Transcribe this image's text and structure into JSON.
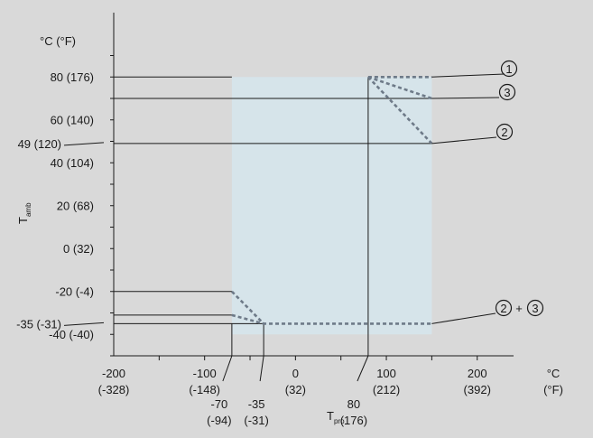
{
  "chart_data": {
    "type": "line",
    "title": "",
    "x_axis": {
      "range_c": [
        -200,
        240
      ],
      "ticks": [
        {
          "v": -200,
          "l1": "-200",
          "l2": "(-328)"
        },
        {
          "v": -100,
          "l1": "-100",
          "l2": "(-148)"
        },
        {
          "v": 0,
          "l1": "0",
          "l2": "(32)"
        },
        {
          "v": 100,
          "l1": "100",
          "l2": "(212)"
        },
        {
          "v": 200,
          "l1": "200",
          "l2": "(392)"
        }
      ],
      "unit_label": [
        "°C",
        "(°F)"
      ],
      "extra_labels": [
        {
          "v": -70,
          "l1": "-70",
          "l2": "(-94)"
        },
        {
          "v": -35,
          "l1": "-35",
          "l2": "(-31)"
        },
        {
          "v": 80,
          "l1": "80",
          "l2": "(176)"
        }
      ],
      "title_main": "T",
      "title_sub": "pro"
    },
    "y_axis": {
      "range_c": [
        -50,
        110
      ],
      "unit_label": "°C (°F)",
      "title_main": "T",
      "title_sub": "amb",
      "ticks": [
        {
          "v": 80,
          "l": "80 (176)"
        },
        {
          "v": 60,
          "l": "60 (140)"
        },
        {
          "v": 40,
          "l": "40 (104)"
        },
        {
          "v": 20,
          "l": "20 (68)"
        },
        {
          "v": 0,
          "l": "0 (32)"
        },
        {
          "v": -20,
          "l": "-20 (-4)"
        },
        {
          "v": -40,
          "l": "-40 (-40)"
        }
      ],
      "extra_labels": [
        {
          "v": 49,
          "l": "49 (120)"
        },
        {
          "v": -35,
          "l": "-35 (-31)"
        }
      ]
    },
    "operating_region": {
      "t_pro": [
        -70,
        150
      ],
      "t_amb": [
        -40,
        80
      ]
    },
    "reference_lines": [
      {
        "t_amb": 80,
        "t_pro_from": -200,
        "t_pro_to": -70
      },
      {
        "t_amb": 70,
        "t_pro_from": -200,
        "t_pro_to": 150
      },
      {
        "t_amb": 49,
        "t_pro_from": -200,
        "t_pro_to": 150
      },
      {
        "t_amb": -20,
        "t_pro_from": -200,
        "t_pro_to": -70
      },
      {
        "t_amb": -31,
        "t_pro_from": -200,
        "t_pro_to": -70
      },
      {
        "t_amb": -35,
        "t_pro_from": -200,
        "t_pro_to": -35
      },
      {
        "t_pro": -70,
        "t_amb_from": -50,
        "t_amb_to": -35
      },
      {
        "t_pro": -35,
        "t_amb_from": -50,
        "t_amb_to": -35
      },
      {
        "t_pro": 80,
        "t_amb_from": -50,
        "t_amb_to": 80
      }
    ],
    "series": [
      {
        "name": "1",
        "points": [
          [
            80,
            80
          ],
          [
            150,
            80
          ]
        ]
      },
      {
        "name": "3",
        "points": [
          [
            80,
            80
          ],
          [
            150,
            70
          ]
        ]
      },
      {
        "name": "2",
        "points": [
          [
            80,
            80
          ],
          [
            150,
            49
          ]
        ]
      },
      {
        "name": "2",
        "points": [
          [
            -70,
            -20
          ],
          [
            -35,
            -35
          ],
          [
            150,
            -35
          ]
        ]
      },
      {
        "name": "3",
        "points": [
          [
            -70,
            -31
          ],
          [
            -35,
            -35
          ]
        ]
      }
    ],
    "callouts": [
      {
        "id": "c1",
        "label": "1",
        "t_pro": 150,
        "t_amb": 80
      },
      {
        "id": "c3",
        "label": "3",
        "t_pro": 150,
        "t_amb": 70
      },
      {
        "id": "c2a",
        "label": "2",
        "t_pro": 150,
        "t_amb": 49
      },
      {
        "id": "c23",
        "label": "2 + 3",
        "t_pro": 150,
        "t_amb": -35
      }
    ],
    "colors": {
      "region": "#d6e4ea",
      "background": "#d9d9d9",
      "dashed_series": "#6e7a88",
      "lines": "#1a1a1a"
    }
  }
}
